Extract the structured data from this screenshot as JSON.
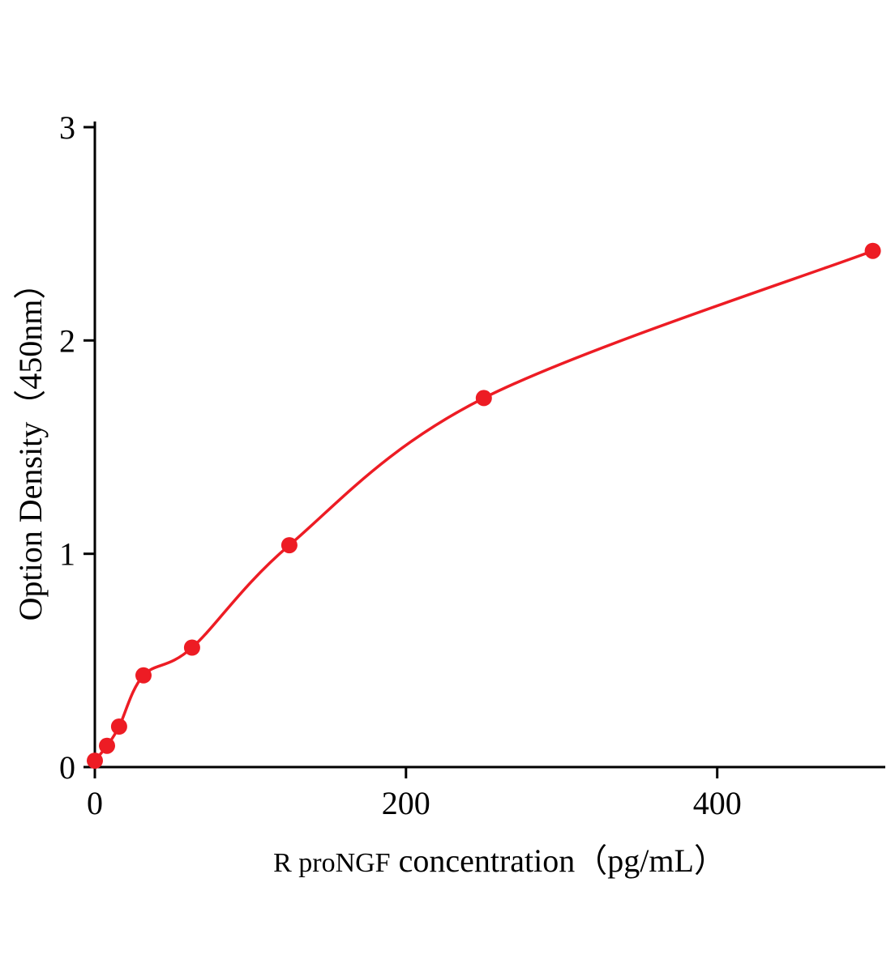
{
  "chart_data": {
    "type": "scatter",
    "subtype": "elisa-standard-curve-with-fitted-line",
    "title": "",
    "xlabel": "R proNGF concentration（pg/mL）",
    "xlabel_parts": [
      "R proNGF",
      "concentration（pg/mL）"
    ],
    "ylabel": "Option Density（450nm）",
    "x": [
      0,
      7.8,
      15.6,
      31.25,
      62.5,
      125,
      250,
      500
    ],
    "y": [
      0.03,
      0.1,
      0.19,
      0.43,
      0.56,
      1.04,
      1.73,
      2.42
    ],
    "x_ticks": [
      0,
      200,
      400
    ],
    "y_ticks": [
      0,
      1,
      2,
      3
    ],
    "xlim": [
      0,
      507
    ],
    "ylim": [
      0,
      3
    ],
    "grid": false,
    "legend": false,
    "marker": "circle",
    "point_color": "#ed1c24",
    "line_color": "#ed1c24",
    "axis_color": "#000000"
  }
}
